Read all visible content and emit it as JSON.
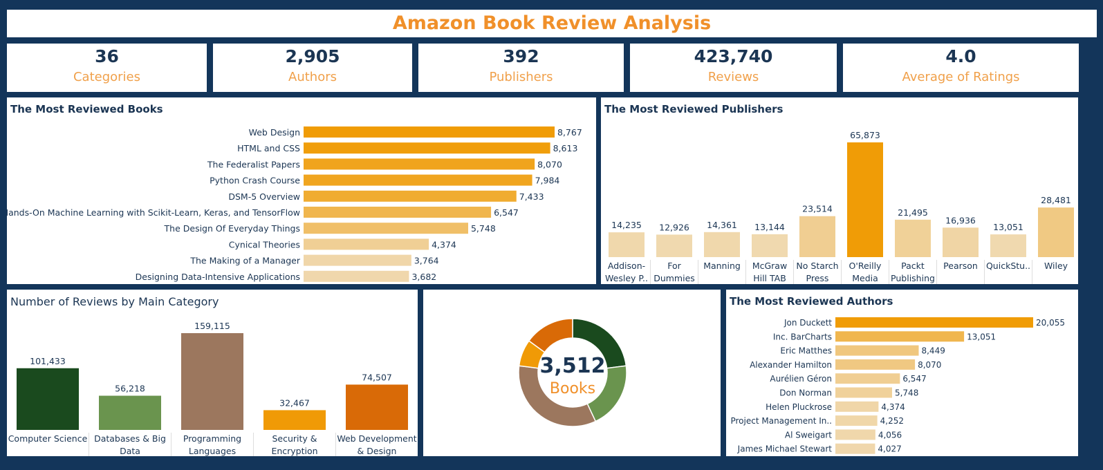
{
  "title": "Amazon Book Review Analysis",
  "kpis": [
    {
      "value": "36",
      "label": "Categories"
    },
    {
      "value": "2,905",
      "label": "Authors"
    },
    {
      "value": "392",
      "label": "Publishers"
    },
    {
      "value": "423,740",
      "label": "Reviews"
    },
    {
      "value": "4.0",
      "label": "Average of Ratings"
    }
  ],
  "donut": {
    "value": "3,512",
    "label": "Books"
  },
  "chart_data": [
    {
      "type": "bar",
      "orientation": "horizontal",
      "title": "The Most Reviewed Books",
      "categories": [
        "Web Design",
        "HTML and CSS",
        "The Federalist Papers",
        "Python Crash Course",
        "DSM-5 Overview",
        "Hands-On Machine Learning with Scikit-Learn, Keras, and TensorFlow",
        "The Design Of Everyday Things",
        "Cynical Theories",
        "The Making of a Manager",
        "Designing Data-Intensive Applications"
      ],
      "values": [
        8767,
        8613,
        8070,
        7984,
        7433,
        6547,
        5748,
        4374,
        3764,
        3682
      ],
      "labels": [
        "8,767",
        "8,613",
        "8,070",
        "7,984",
        "7,433",
        "6,547",
        "5,748",
        "4,374",
        "3,764",
        "3,682"
      ]
    },
    {
      "type": "bar",
      "orientation": "vertical",
      "title": "The Most Reviewed Publishers",
      "categories": [
        [
          "Addison-",
          "Wesley P.."
        ],
        [
          "For",
          "Dummies"
        ],
        [
          "Manning"
        ],
        [
          "McGraw",
          "Hill TAB"
        ],
        [
          "No Starch",
          "Press"
        ],
        [
          "O'Reilly",
          "Media"
        ],
        [
          "Packt",
          "Publishing"
        ],
        [
          "Pearson"
        ],
        [
          "QuickStu.."
        ],
        [
          "Wiley"
        ]
      ],
      "values": [
        14235,
        12926,
        14361,
        13144,
        23514,
        65873,
        21495,
        16936,
        13051,
        28481
      ],
      "labels": [
        "14,235",
        "12,926",
        "14,361",
        "13,144",
        "23,514",
        "65,873",
        "21,495",
        "16,936",
        "13,051",
        "28,481"
      ]
    },
    {
      "type": "bar",
      "orientation": "vertical",
      "title": "Number of Reviews by Main Category",
      "categories": [
        [
          "Computer Science"
        ],
        [
          "Databases & Big",
          "Data"
        ],
        [
          "Programming",
          "Languages"
        ],
        [
          "Security &",
          "Encryption"
        ],
        [
          "Web Development",
          "& Design"
        ]
      ],
      "values": [
        101433,
        56218,
        159115,
        32467,
        74507
      ],
      "labels": [
        "101,433",
        "56,218",
        "159,115",
        "32,467",
        "74,507"
      ],
      "colors": [
        "#1a4a1e",
        "#6a944e",
        "#9c775e",
        "#f09a06",
        "#d96a07"
      ]
    },
    {
      "type": "pie",
      "slices": [
        {
          "name": "Computer Science",
          "value": 0.23,
          "color": "#1a4a1e"
        },
        {
          "name": "Databases & Big Data",
          "value": 0.2,
          "color": "#6a944e"
        },
        {
          "name": "Programming Languages",
          "value": 0.34,
          "color": "#9c775e"
        },
        {
          "name": "Security & Encryption",
          "value": 0.08,
          "color": "#f09a06"
        },
        {
          "name": "Web Development & Design",
          "value": 0.15,
          "color": "#d96a07"
        }
      ]
    },
    {
      "type": "bar",
      "orientation": "horizontal",
      "title": "The Most Reviewed Authors",
      "categories": [
        "Jon Duckett",
        "Inc. BarCharts",
        "Eric Matthes",
        "Alexander Hamilton",
        "Aurélien Géron",
        "Don Norman",
        "Helen Pluckrose",
        "Project Management In..",
        "Al Sweigart",
        "James Michael Stewart"
      ],
      "values": [
        20055,
        13051,
        8449,
        8070,
        6547,
        5748,
        4374,
        4252,
        4056,
        4027
      ],
      "labels": [
        "20,055",
        "13,051",
        "8,449",
        "8,070",
        "6,547",
        "5,748",
        "4,374",
        "4,252",
        "4,056",
        "4,027"
      ]
    }
  ]
}
